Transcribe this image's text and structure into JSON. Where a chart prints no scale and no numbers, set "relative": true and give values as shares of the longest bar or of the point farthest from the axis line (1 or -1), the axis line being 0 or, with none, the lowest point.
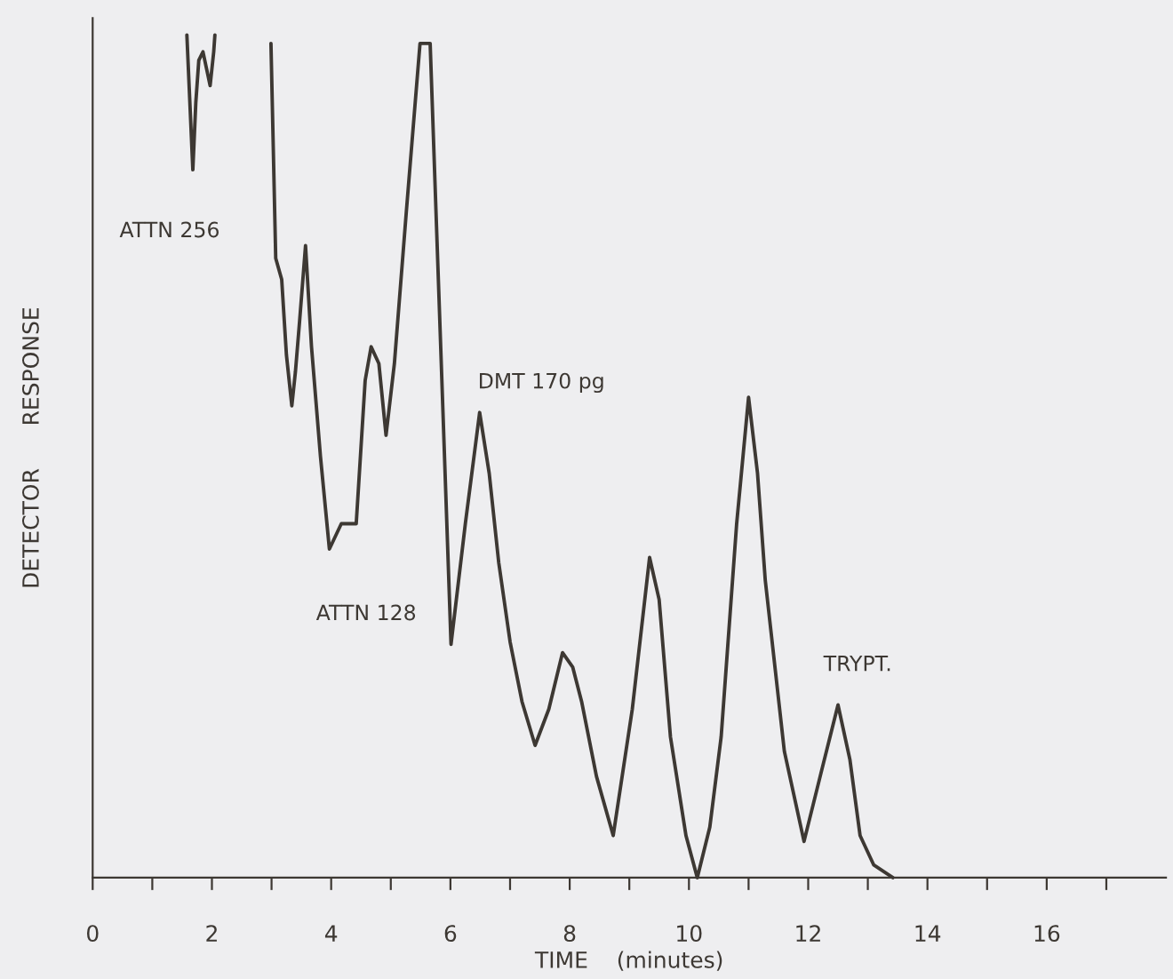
{
  "chart_data": {
    "type": "line",
    "relative": true,
    "xlabel": "TIME    (minutes)",
    "ylabel": "DETECTOR      RESPONSE",
    "x": [
      1.58,
      1.68,
      1.73,
      1.78,
      1.85,
      1.91,
      1.97,
      2.03,
      2.05,
      2.5,
      2.99,
      3.07,
      3.17,
      3.25,
      3.34,
      3.4,
      3.47,
      3.57,
      3.67,
      3.82,
      3.97,
      4.17,
      4.42,
      4.57,
      4.67,
      4.8,
      4.92,
      5.06,
      5.26,
      5.49,
      5.66,
      6.01,
      6.25,
      6.49,
      6.65,
      6.81,
      7.0,
      7.2,
      7.42,
      7.65,
      7.88,
      8.05,
      8.2,
      8.45,
      8.73,
      9.05,
      9.34,
      9.5,
      9.69,
      9.95,
      10.14,
      10.35,
      10.54,
      10.8,
      11.0,
      11.15,
      11.28,
      11.6,
      11.93,
      12.2,
      12.5,
      12.7,
      12.87,
      13.1,
      13.42
    ],
    "values": [
      1.0,
      0.84,
      0.92,
      0.97,
      0.98,
      0.96,
      0.94,
      0.98,
      1.0,
      null,
      0.99,
      0.735,
      0.71,
      0.62,
      0.56,
      0.6,
      0.66,
      0.75,
      0.63,
      0.5,
      0.39,
      0.42,
      0.42,
      0.59,
      0.63,
      0.61,
      0.525,
      0.61,
      0.79,
      0.99,
      0.99,
      0.277,
      0.42,
      0.552,
      0.48,
      0.374,
      0.28,
      0.209,
      0.157,
      0.2,
      0.267,
      0.25,
      0.209,
      0.12,
      0.05,
      0.2,
      0.38,
      0.33,
      0.167,
      0.05,
      0.0,
      0.06,
      0.167,
      0.42,
      0.57,
      0.48,
      0.353,
      0.15,
      0.043,
      0.12,
      0.205,
      0.14,
      0.05,
      0.015,
      0.0
    ],
    "color": "#3d3833",
    "xlim": [
      0,
      18
    ],
    "xticks": [
      0,
      {
        "value": 1,
        "label": null
      },
      2,
      {
        "value": 3,
        "label": null
      },
      4,
      {
        "value": 5,
        "label": null
      },
      6,
      {
        "value": 7,
        "label": null
      },
      8,
      {
        "value": 9,
        "label": null
      },
      10,
      {
        "value": 11,
        "label": null
      },
      12,
      {
        "value": 13,
        "label": null
      },
      14,
      {
        "value": 15,
        "label": null
      },
      16,
      {
        "value": 17,
        "label": null
      }
    ],
    "annotations": [
      "ATTN 256",
      {
        "text": "ATTN 128",
        "x": 6.01,
        "y": 0.277
      },
      {
        "text": "DMT 170 pg",
        "x": 6.49,
        "y": 0.552
      },
      {
        "text": "TRYPT.",
        "x": 12.5,
        "y": 0.205
      }
    ],
    "grid": false,
    "legend": false
  }
}
